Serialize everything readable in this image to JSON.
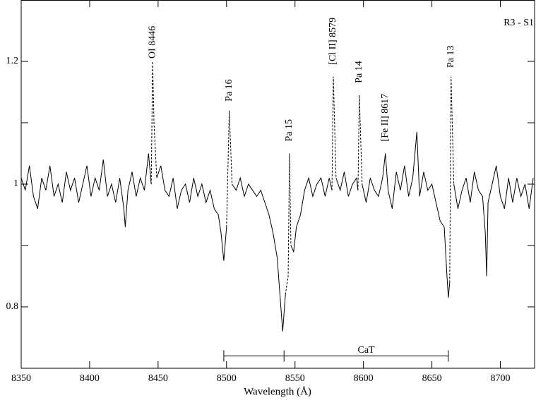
{
  "chart_data": {
    "type": "line",
    "x_label": "Wavelength  (Å)",
    "corner_label": "R3 - S1",
    "xlim": [
      8350,
      8725
    ],
    "ylim": [
      0.7,
      1.3
    ],
    "xticks": [
      8350,
      8400,
      8450,
      8500,
      8550,
      8600,
      8650,
      8700
    ],
    "yticks": [
      0.8,
      1,
      1.2
    ],
    "yminorticks": [
      0.9,
      1.1
    ],
    "color": "#000000",
    "series": [
      {
        "dash": false,
        "x": [
          8350,
          8353,
          8356,
          8359,
          8362,
          8365,
          8368,
          8371,
          8374,
          8377,
          8380,
          8383,
          8386,
          8389,
          8392,
          8395,
          8398,
          8401,
          8404,
          8407,
          8410,
          8413,
          8416,
          8419,
          8422,
          8425,
          8426,
          8428,
          8431,
          8434,
          8437,
          8440,
          8443,
          8445,
          null,
          8449,
          8452,
          8455,
          8458,
          8461,
          8464,
          8467,
          8470,
          8473,
          8476,
          8479,
          8482,
          8485,
          8488,
          8491,
          8494,
          8496,
          8498,
          8500,
          null,
          8504,
          8507,
          8510,
          8513,
          8516,
          8519,
          8522,
          8525,
          8528,
          8531,
          8534,
          8537,
          8539,
          8541,
          8543,
          null,
          8547,
          8549,
          8551,
          8554,
          8557,
          8560,
          8563,
          8566,
          8569,
          8572,
          8575,
          8577,
          null,
          8580,
          8583,
          8586,
          8589,
          8592,
          8595,
          8596,
          null,
          8599,
          8602,
          8605,
          8608,
          8611,
          8614,
          8616,
          8618,
          8621,
          8624,
          8627,
          8630,
          8633,
          8636,
          8639,
          8641,
          8644,
          8647,
          8650,
          8653,
          8656,
          8659,
          8661,
          8662,
          8663,
          null,
          8666,
          8669,
          8672,
          8675,
          8678,
          8681,
          8684,
          8687,
          8689,
          8690,
          8691,
          8694,
          8697,
          8700,
          8703,
          8706,
          8709,
          8712,
          8715,
          8718,
          8721,
          8724
        ],
        "values": [
          1.01,
          0.99,
          1.03,
          0.98,
          0.96,
          1.01,
          0.99,
          1.03,
          0.98,
          1.0,
          0.97,
          1.02,
          0.99,
          1.01,
          0.97,
          1.0,
          1.03,
          0.98,
          1.01,
          0.99,
          1.04,
          0.98,
          1.0,
          0.97,
          1.01,
          0.96,
          0.93,
          0.99,
          1.02,
          0.98,
          1.01,
          0.99,
          1.05,
          1.0,
          null,
          1.01,
          1.03,
          0.99,
          0.98,
          1.01,
          0.96,
          0.99,
          1.0,
          0.97,
          1.01,
          0.98,
          1.0,
          0.97,
          0.99,
          0.96,
          0.95,
          0.92,
          0.875,
          0.93,
          null,
          1.0,
          0.99,
          1.01,
          0.98,
          1.0,
          0.99,
          0.98,
          0.99,
          0.97,
          0.95,
          0.92,
          0.88,
          0.82,
          0.76,
          0.82,
          null,
          0.9,
          0.89,
          0.93,
          0.95,
          0.99,
          1.01,
          0.98,
          1.0,
          1.01,
          0.98,
          1.01,
          0.99,
          null,
          1.01,
          0.99,
          1.02,
          0.98,
          1.0,
          1.01,
          0.99,
          null,
          1.0,
          0.97,
          1.01,
          0.99,
          0.98,
          1.01,
          1.05,
          0.99,
          0.96,
          1.02,
          0.99,
          1.03,
          0.98,
          1.01,
          1.085,
          0.98,
          1.02,
          0.99,
          1.0,
          0.97,
          0.94,
          0.93,
          0.85,
          0.815,
          0.84,
          null,
          1.0,
          0.96,
          0.99,
          1.01,
          0.97,
          1.02,
          0.99,
          0.98,
          0.92,
          0.85,
          0.97,
          1.0,
          1.03,
          0.98,
          0.96,
          1.01,
          0.97,
          1.01,
          0.98,
          1.0,
          0.96,
          1.01
        ]
      },
      {
        "dash": true,
        "x": [
          8445,
          8446,
          8447,
          8449,
          null,
          8500,
          8502,
          8504,
          null,
          8543,
          8545,
          8546,
          8547,
          null,
          8577,
          8578,
          8580,
          null,
          8596,
          8597,
          8599,
          null,
          8663,
          8664,
          8666
        ],
        "values": [
          1.0,
          1.2,
          1.1,
          1.01,
          null,
          0.93,
          1.12,
          1.0,
          null,
          0.82,
          0.85,
          1.05,
          0.9,
          null,
          0.99,
          1.175,
          1.01,
          null,
          0.99,
          1.145,
          1.0,
          null,
          0.84,
          1.175,
          1.0
        ]
      }
    ],
    "annotations": [
      {
        "text": "OI 8446",
        "x": 8446,
        "y": 1.2
      },
      {
        "text": "Pa 16",
        "x": 8502,
        "y": 1.13
      },
      {
        "text": "Pa 15",
        "x": 8546,
        "y": 1.065
      },
      {
        "text": "[Cl II] 8579",
        "x": 8578,
        "y": 1.19
      },
      {
        "text": "Pa 14",
        "x": 8597,
        "y": 1.16
      },
      {
        "text": "[Fe II] 8617",
        "x": 8616,
        "y": 1.065
      },
      {
        "text": "Pa 13",
        "x": 8664,
        "y": 1.185
      }
    ],
    "bracket": {
      "text": "CaT",
      "x": [
        8498,
        8542,
        8662
      ],
      "y": 0.72
    }
  }
}
